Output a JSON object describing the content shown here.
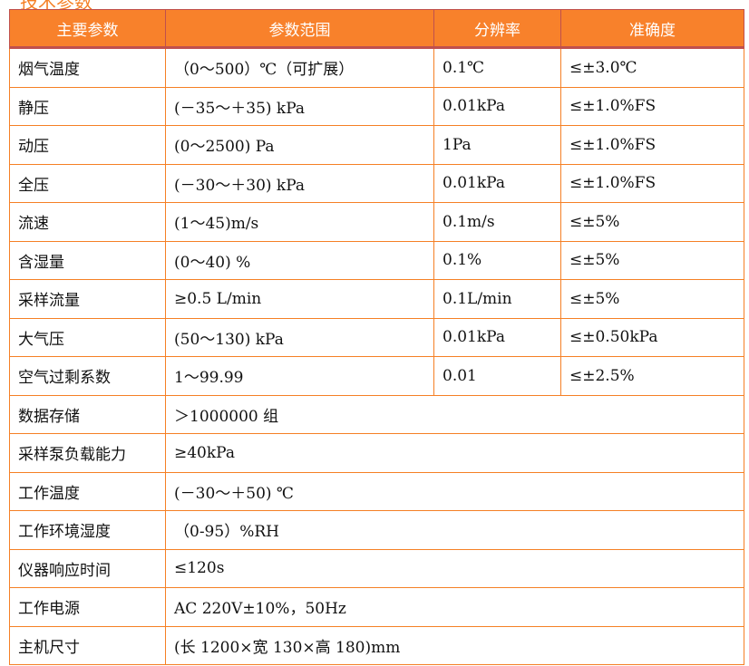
{
  "title": "技术参数",
  "headers": [
    "主要参数",
    "参数范围",
    "分辨率",
    "准确度"
  ],
  "rows": [
    [
      "烟气温度",
      "（0～500）℃（可扩展）",
      "0.1℃",
      "≤±3.0℃"
    ],
    [
      "静压",
      "(－35～＋35) kPa",
      "0.01kPa",
      "≤±1.0%FS"
    ],
    [
      "动压",
      "(0～2500) Pa",
      "1Pa",
      "≤±1.0%FS"
    ],
    [
      "全压",
      "(－30～＋30) kPa",
      "0.01kPa",
      "≤±1.0%FS"
    ],
    [
      "流速",
      "(1～45)m/s",
      "0.1m/s",
      "≤±5%"
    ],
    [
      "含湿量",
      "(0～40) %",
      "0.1%",
      "≤±5%"
    ],
    [
      "采样流量",
      "≥0.5 L/min",
      "0.1L/min",
      "≤±5%"
    ],
    [
      "大气压",
      "(50～130) kPa",
      "0.01kPa",
      "≤±0.50kPa"
    ],
    [
      "空气过剩系数",
      "1～99.99",
      "0.01",
      "≤±2.5%"
    ]
  ],
  "rows_wide": [
    [
      "数据存储",
      "＞1000000 组"
    ],
    [
      "采样泵负载能力",
      "≥40kPa"
    ],
    [
      "工作温度",
      "(－30～＋50) ℃"
    ],
    [
      "工作环境湿度",
      "（0-95）%RH"
    ],
    [
      "仪器响应时间",
      "≤120s"
    ],
    [
      "工作电源",
      "AC 220V±10%，50Hz"
    ],
    [
      "主机尺寸",
      "(长 1200×宽 130×高 180)mm"
    ]
  ]
}
